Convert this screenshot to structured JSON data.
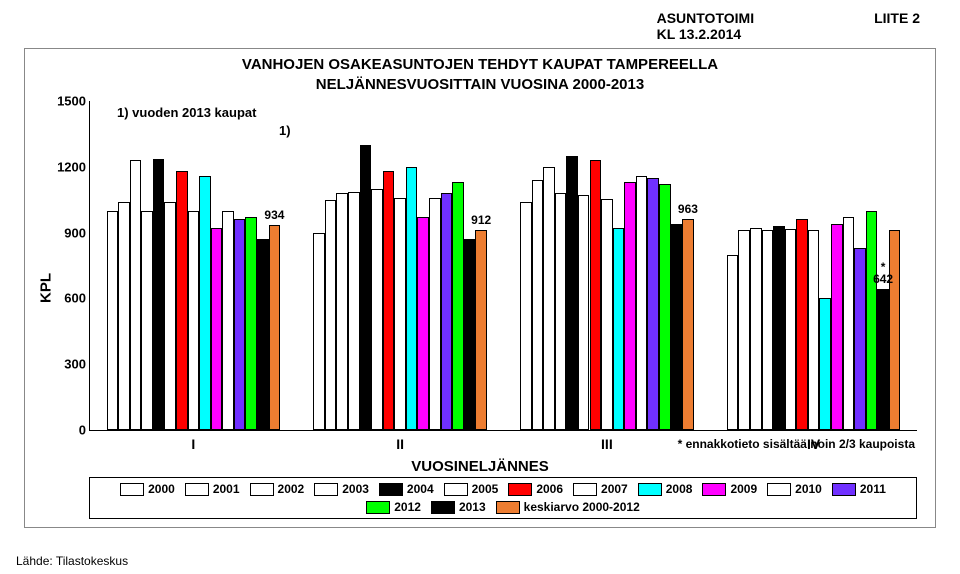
{
  "header": {
    "org": "ASUNTOTOIMI",
    "date": "KL 13.2.2014",
    "liite": "LIITE 2"
  },
  "chart": {
    "title_line1": "VANHOJEN OSAKEASUNTOJEN TEHDYT KAUPAT TAMPEREELLA",
    "title_line2": "NELJÄNNESVUOSITTAIN VUOSINA 2000-2013",
    "note": "1) vuoden 2013 kaupat",
    "marker1": "1)",
    "ylabel": "KPL",
    "ylim": [
      0,
      1500
    ],
    "yticks": [
      0,
      300,
      600,
      900,
      1200,
      1500
    ],
    "categories": [
      "I",
      "II",
      "III",
      "IV"
    ],
    "xaxis_title": "VUOSINELJÄNNES",
    "footnote": "* ennakkotieto sisältää noin 2/3 kaupoista",
    "series": [
      {
        "name": "2000",
        "color": "#ffffff"
      },
      {
        "name": "2001",
        "color": "#ffffff"
      },
      {
        "name": "2002",
        "color": "#ffffff"
      },
      {
        "name": "2003",
        "color": "#ffffff"
      },
      {
        "name": "2004",
        "color": "#000000"
      },
      {
        "name": "2005",
        "color": "#ffffff"
      },
      {
        "name": "2006",
        "color": "#ff0000"
      },
      {
        "name": "2007",
        "color": "#ffffff"
      },
      {
        "name": "2008",
        "color": "#00ffff"
      },
      {
        "name": "2009",
        "color": "#ff00ff"
      },
      {
        "name": "2010",
        "color": "#ffffff"
      },
      {
        "name": "2011",
        "color": "#7030ff"
      },
      {
        "name": "2012",
        "color": "#00ff00"
      },
      {
        "name": "2013",
        "color": "#000000"
      },
      {
        "name": "keskiarvo 2000-2012",
        "color": "#ed7d31"
      }
    ],
    "values": [
      [
        1000,
        1040,
        1230,
        1000,
        1235,
        1040,
        1180,
        1000,
        1160,
        920,
        1000,
        960,
        970,
        870,
        934
      ],
      [
        900,
        1050,
        1080,
        1085,
        1300,
        1100,
        1180,
        1060,
        1200,
        970,
        1060,
        1080,
        1130,
        870,
        912
      ],
      [
        1040,
        1140,
        1200,
        1080,
        1250,
        1070,
        1230,
        1055,
        920,
        1130,
        1160,
        1150,
        1120,
        940,
        963
      ],
      [
        800,
        910,
        920,
        910,
        930,
        915,
        960,
        910,
        600,
        940,
        970,
        830,
        1000,
        642,
        910
      ]
    ],
    "value_labels": [
      {
        "group": 0,
        "series": 14,
        "text": "934"
      },
      {
        "group": 1,
        "series": 14,
        "text": "912"
      },
      {
        "group": 2,
        "series": 14,
        "text": "963"
      },
      {
        "group": 3,
        "series": 13,
        "text": "*\n642"
      }
    ],
    "background_color": "#ffffff",
    "bar_border": "#000000"
  },
  "source": "Lähde: Tilastokeskus"
}
